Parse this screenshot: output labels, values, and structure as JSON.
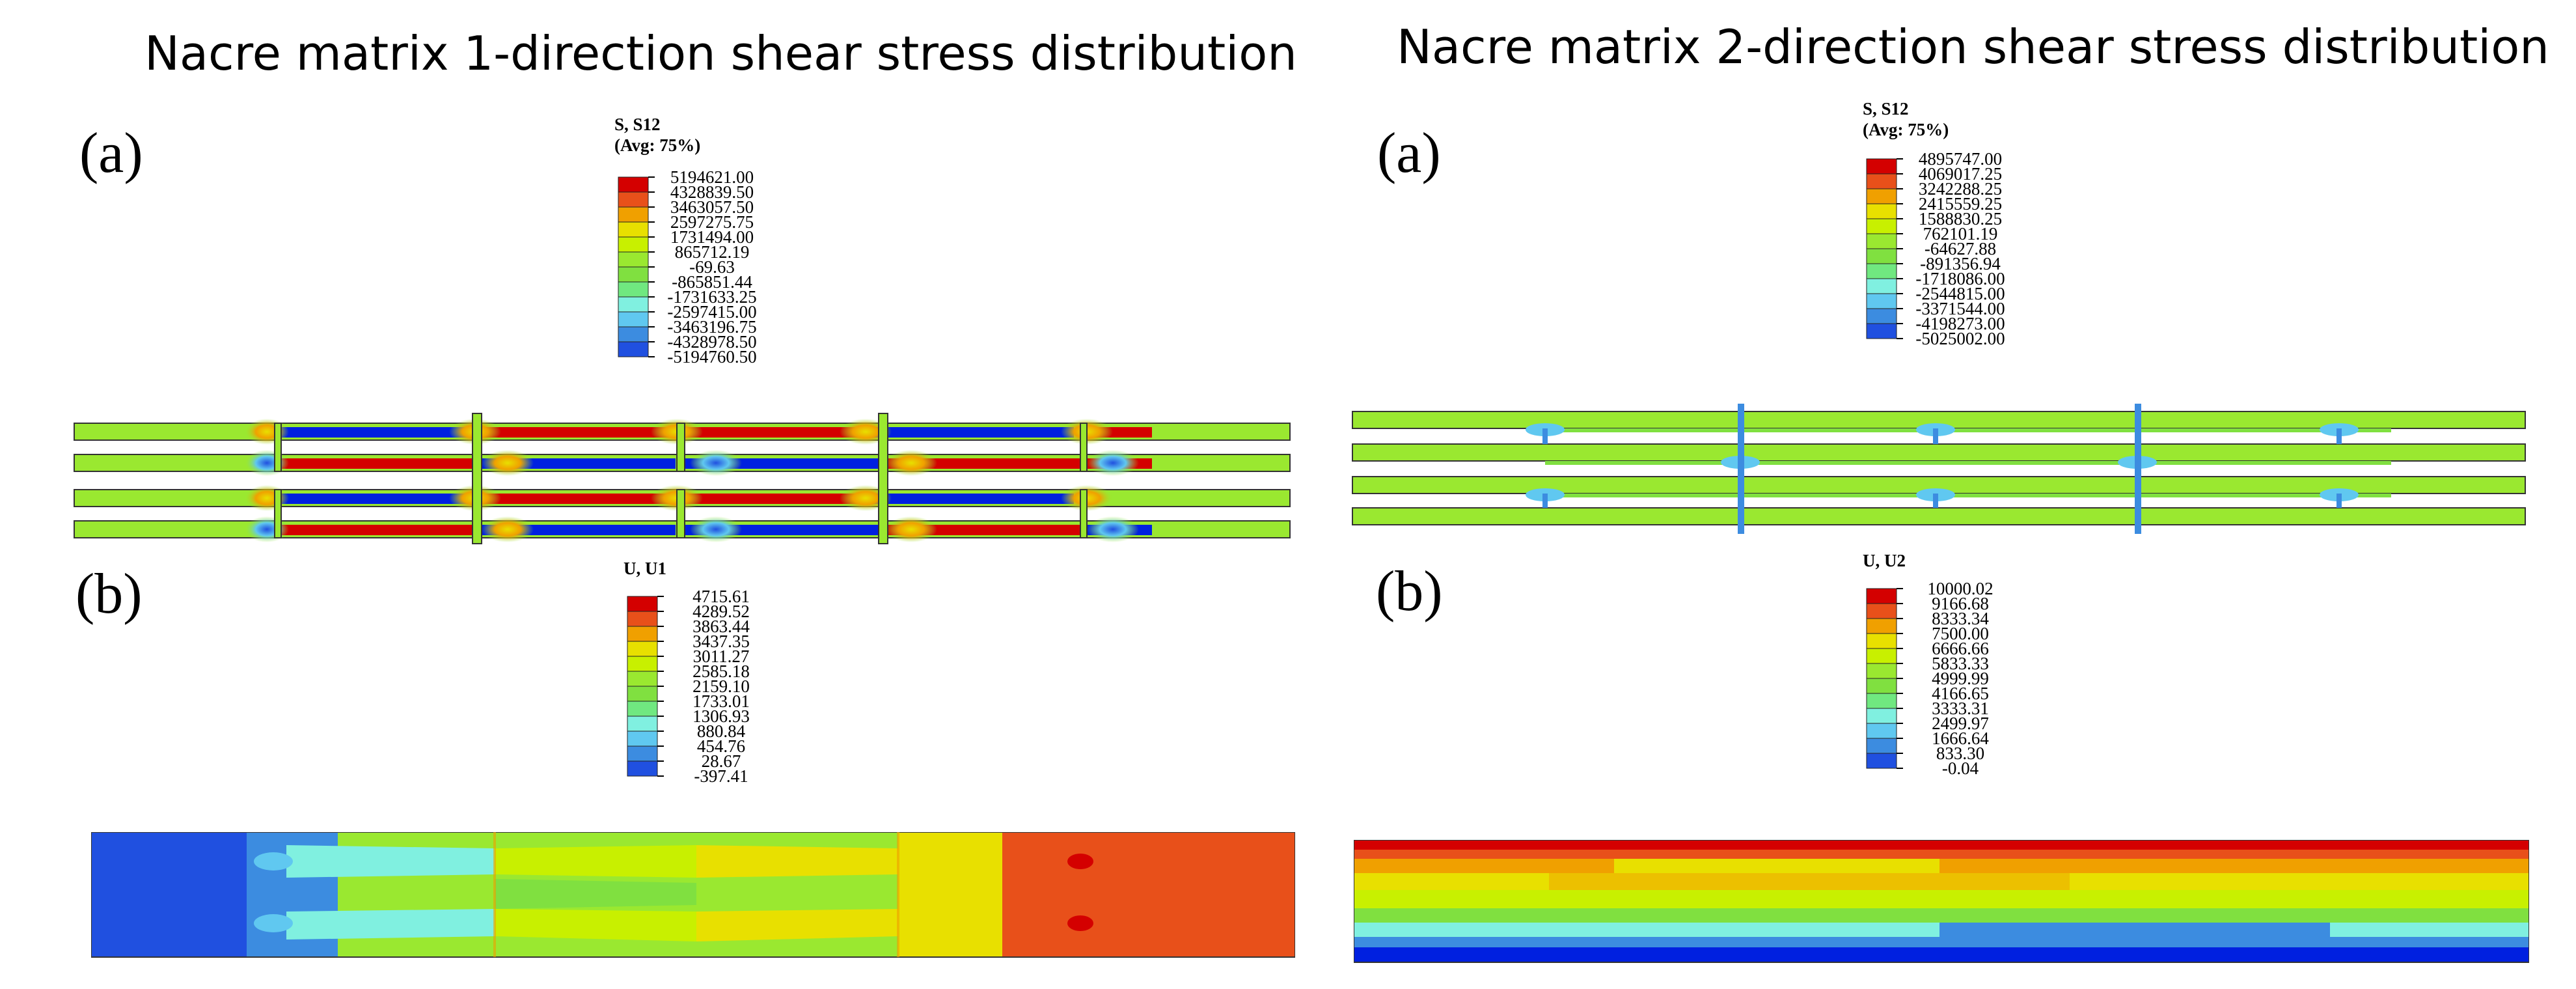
{
  "left_panel": {
    "title": "Nacre matrix 1-direction shear stress distribution",
    "a": {
      "label": "(a)",
      "legend_variable": "S, S12",
      "legend_averaging": "(Avg: 75%)",
      "legend_values": [
        "5194621.00",
        "4328839.50",
        "3463057.50",
        "2597275.75",
        "1731494.00",
        "865712.19",
        "-69.63",
        "-865851.44",
        "-1731633.25",
        "-2597415.00",
        "-3463196.75",
        "-4328978.50",
        "-5194760.50"
      ]
    },
    "b": {
      "label": "(b)",
      "legend_variable": "U, U1",
      "legend_values": [
        "4715.61",
        "4289.52",
        "3863.44",
        "3437.35",
        "3011.27",
        "2585.18",
        "2159.10",
        "1733.01",
        "1306.93",
        "880.84",
        "454.76",
        "28.67",
        "-397.41"
      ]
    }
  },
  "right_panel": {
    "title": "Nacre matrix 2-direction shear stress distribution",
    "a": {
      "label": "(a)",
      "legend_variable": "S, S12",
      "legend_averaging": "(Avg: 75%)",
      "legend_values": [
        "4895747.00",
        "4069017.25",
        "3242288.25",
        "2415559.25",
        "1588830.25",
        "762101.19",
        "-64627.88",
        "-891356.94",
        "-1718086.00",
        "-2544815.00",
        "-3371544.00",
        "-4198273.00",
        "-5025002.00"
      ]
    },
    "b": {
      "label": "(b)",
      "legend_variable": "U, U2",
      "legend_values": [
        "10000.02",
        "9166.68",
        "8333.34",
        "7500.00",
        "6666.66",
        "5833.33",
        "4999.99",
        "4166.65",
        "3333.31",
        "2499.97",
        "1666.64",
        "833.30",
        "-0.04"
      ]
    }
  },
  "colormap": [
    "#d40000",
    "#e8501a",
    "#f0a000",
    "#e8e000",
    "#c8f000",
    "#9ae830",
    "#80e040",
    "#70e880",
    "#80f0e0",
    "#60c8f0",
    "#3c8ce0",
    "#2050e0",
    "#0020e0"
  ]
}
